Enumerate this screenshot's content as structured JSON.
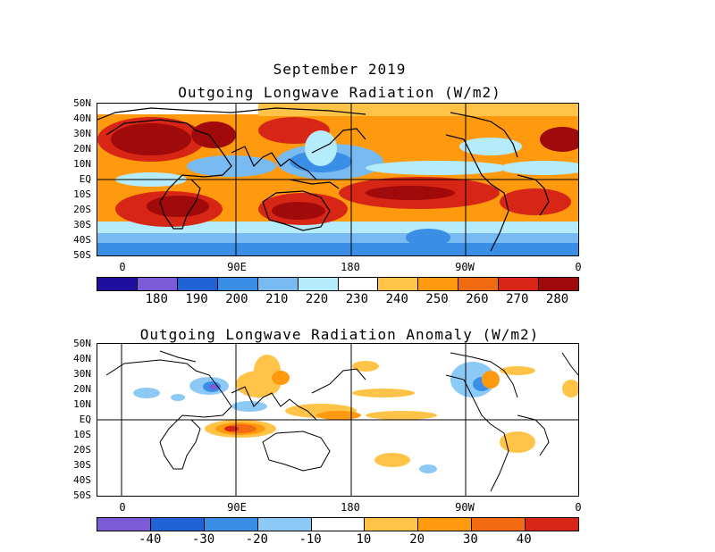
{
  "header": {
    "month_title": "September 2019",
    "top_title": "Outgoing Longwave Radiation (W/m2)",
    "bottom_title": "Outgoing Longwave Radiation Anomaly (W/m2)"
  },
  "lat_labels": [
    "50N",
    "40N",
    "30N",
    "20N",
    "10N",
    "EQ",
    "10S",
    "20S",
    "30S",
    "40S",
    "50S"
  ],
  "lon_labels": [
    "0",
    "90E",
    "180",
    "90W",
    "0"
  ],
  "top_colorbar": {
    "ticks": [
      "180",
      "190",
      "200",
      "210",
      "220",
      "230",
      "240",
      "250",
      "260",
      "270",
      "280"
    ],
    "colors": [
      "#1f0ea0",
      "#7b5cd6",
      "#1f63d6",
      "#3a8ee6",
      "#78baf2",
      "#b4ecfb",
      "#ffffff",
      "#ffc447",
      "#ff9a0f",
      "#f26a12",
      "#d82616",
      "#a00a0a"
    ]
  },
  "bottom_colorbar": {
    "ticks": [
      "-40",
      "-30",
      "-20",
      "-10",
      "10",
      "20",
      "30",
      "40"
    ],
    "colors": [
      "#7b5cd6",
      "#1f63d6",
      "#3a8ee6",
      "#8dc9f7",
      "#ffffff",
      "#ffc447",
      "#ff9a0f",
      "#f26a12",
      "#d82616"
    ]
  }
}
